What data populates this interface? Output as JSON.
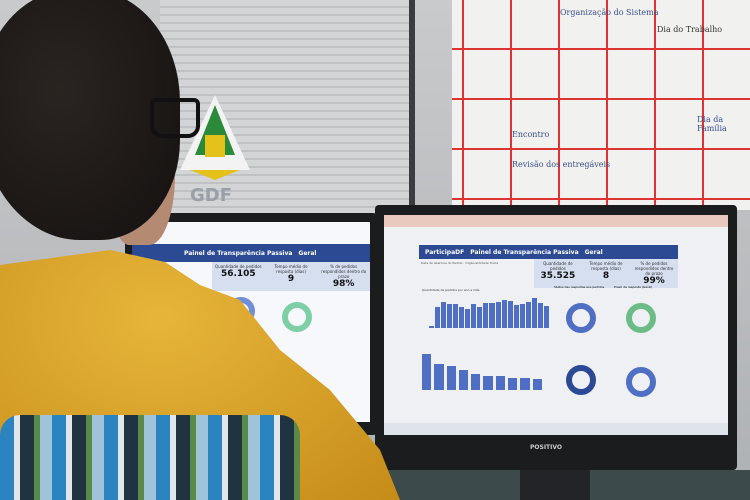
{
  "wall_sign": {
    "text": "GDF"
  },
  "whiteboard": {
    "notes": [
      "Organização do Sistema",
      "Dia do Trabalho",
      "Encontro",
      "Dia da Família",
      "Revisão dos entregáveis"
    ]
  },
  "left_monitor": {
    "dashboard_title": "Painel de Transparência Passiva",
    "filter": "Geral",
    "kpis": [
      {
        "label": "Quantidade de pedidos",
        "value": "56.105"
      },
      {
        "label": "Tempo médio de resposta (dias)",
        "value": "9"
      },
      {
        "label": "% de pedidos respondidos dentro do prazo",
        "value": "98%"
      }
    ]
  },
  "right_monitor": {
    "brand": "POSITIVO",
    "app_name": "ParticipaDF",
    "dashboard_title": "Painel de Transparência Passiva",
    "filter": "Geral",
    "filters": [
      {
        "label": "Data de abertura do Pedido"
      },
      {
        "label": "Órgão/entidade",
        "value": "Todos"
      }
    ],
    "kpis": [
      {
        "label": "Quantidade de pedidos",
        "value": "35.525"
      },
      {
        "label": "Tempo médio de resposta (dias)",
        "value": "8"
      },
      {
        "label": "% de pedidos respondidos dentro do prazo",
        "value": "99%"
      }
    ],
    "charts": [
      "Quantidade de pedidos por ano e mês",
      "Status das respostas aos pedidos",
      "Prazo de resposta (Geral)"
    ],
    "bar_levels": [
      0.05,
      0.6,
      0.75,
      0.7,
      0.7,
      0.6,
      0.55,
      0.68,
      0.6,
      0.72,
      0.72,
      0.75,
      0.8,
      0.78,
      0.65,
      0.68,
      0.75,
      0.85,
      0.72,
      0.62
    ],
    "bottom_bar_levels": [
      0.9,
      0.65,
      0.6,
      0.5,
      0.4,
      0.35,
      0.35,
      0.3,
      0.3,
      0.28
    ]
  }
}
